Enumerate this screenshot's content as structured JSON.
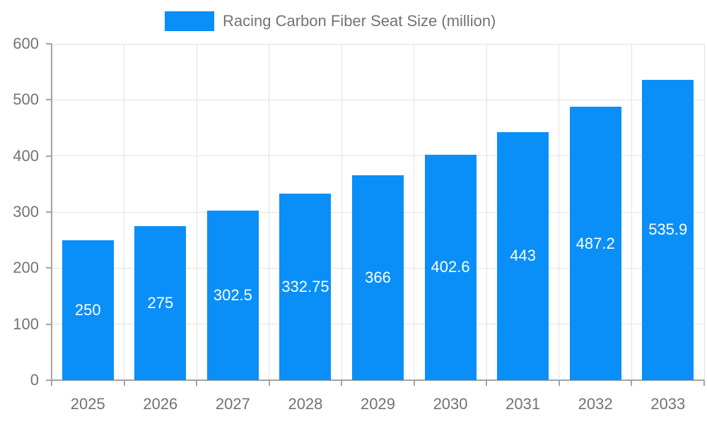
{
  "chart_data": {
    "type": "bar",
    "title": "",
    "legend_label": "Racing Carbon Fiber Seat Size (million)",
    "categories": [
      "2025",
      "2026",
      "2027",
      "2028",
      "2029",
      "2030",
      "2031",
      "2032",
      "2033"
    ],
    "series": [
      {
        "name": "Racing Carbon Fiber Seat Size (million)",
        "values": [
          250,
          275,
          302.5,
          332.75,
          366,
          402.6,
          443,
          487.2,
          535.9
        ]
      }
    ],
    "value_labels": [
      "250",
      "275",
      "302.5",
      "332.75",
      "366",
      "402.6",
      "443",
      "487.2",
      "535.9"
    ],
    "xlabel": "",
    "ylabel": "",
    "ylim": [
      0,
      600
    ],
    "ytick_step": 100,
    "ytick_labels": [
      "0",
      "100",
      "200",
      "300",
      "400",
      "500",
      "600"
    ],
    "grid": true,
    "legend_position": "top-center",
    "value_label_position": "inside-center"
  },
  "colors": {
    "bar": "#0a8ff8",
    "text": "#737373",
    "axis": "#a3a3a3",
    "grid": "#e2e2e2",
    "value_label": "#ffffff",
    "background": "#ffffff"
  }
}
